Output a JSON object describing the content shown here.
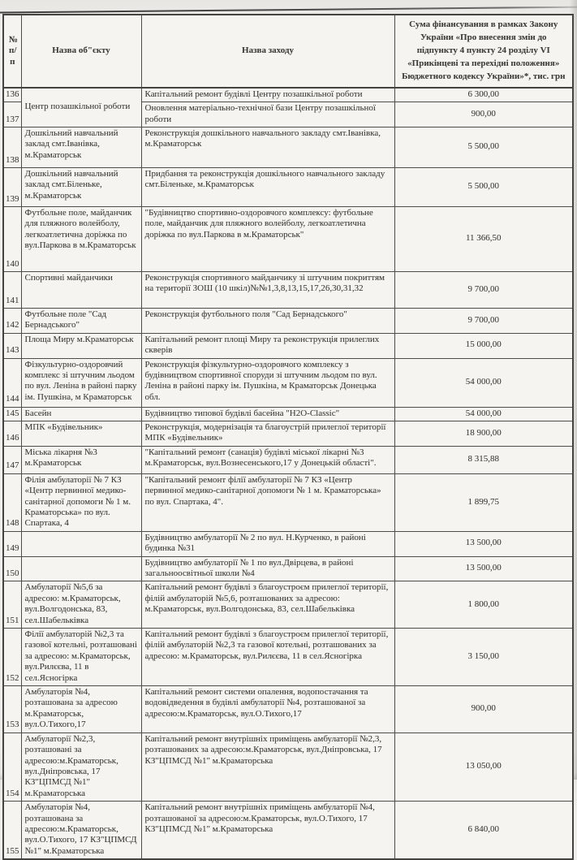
{
  "document": {
    "kind": "scanned budget funding table",
    "language": "uk"
  },
  "table": {
    "headers": {
      "num_line1": "№",
      "num_line2": "п/п",
      "object": "Назва  об\"єкту",
      "measure": "Назва заходу",
      "amount": "Сума фінансування в рамках Закону України «Про внесення змін до підпункту 4 пункту 24 розділу VI «Прикінцеві та перехідні положення» Бюджетного кодексу України»*, тис. грн"
    },
    "rows": [
      {
        "num": "136",
        "object": "Центр позашкільної роботи",
        "object_rowspan": 2,
        "measure": "Капітальний ремонт будівлі Центру позашкільної роботи",
        "amount": "6 300,00"
      },
      {
        "num": "137",
        "object": null,
        "measure": "Оновлення матеріально-технічної бази Центру позашкільної роботи",
        "amount": "900,00"
      },
      {
        "num": "138",
        "object": "Дошкільний навчальний заклад смт.Іванівка, м.Краматорськ",
        "measure": "Реконструкція дошкільного навчального закладу смт.Іванівка, м.Краматорськ",
        "amount": "5 500,00"
      },
      {
        "num": "139",
        "object": "Дошкільний навчальний заклад смт.Біленьке, м.Краматорськ",
        "measure": "Придбання та реконструкція дошкільного навчального закладу смт.Біленьке, м.Краматорськ",
        "amount": "5 500,00"
      },
      {
        "num": "140",
        "object": "Футбольне поле, майданчик для пляжного волейболу, легкоатлетична доріжка по вул.Паркова в м.Краматорськ",
        "measure": "\"Будівництво спортивно-оздоровчого комплексу: футбольне поле, майданчик для пляжного волейболу, легкоатлетична доріжка по вул.Паркова в м.Краматорськ\"",
        "amount": "11 366,50"
      },
      {
        "num": "141",
        "object": "Спортивні майданчики",
        "measure": "Реконструкція спортивного майданчику зі штучним покриттям на території ЗОШ (10 шкіл)№№1,3,8,13,15,17,26,30,31,32",
        "amount": "9 700,00"
      },
      {
        "num": "142",
        "object": "Футбольне поле \"Сад Бернадського\"",
        "measure": "Реконструкція футбольного поля \"Сад Бернадського\"",
        "amount": "9 700,00"
      },
      {
        "num": "143",
        "object": "Площа Миру м.Краматорськ",
        "measure": "Капітальний ремонт площі Миру та реконструкція прилеглих скверів",
        "amount": "15 000,00"
      },
      {
        "num": "144",
        "object": "Фізкультурно-оздоровчий комплекс зі штучним льодом по вул. Леніна в районі парку ім. Пушкіна, м Краматорськ",
        "measure": "Реконструкція фізкультурно-оздоровчого комплексу з будівництвом спортивної споруди зі штучним льодом по вул. Леніна в районі парку ім. Пушкіна, м Краматорськ Донецька обл.",
        "amount": "54 000,00"
      },
      {
        "num": "145",
        "object": "Басейн",
        "measure": "Будівництво типової будівлі басейна \"H2O-Classic\"",
        "amount": "54 000,00"
      },
      {
        "num": "146",
        "object": "МПК «Будівельник»",
        "measure": "Реконструкція, модернізація та благоустрій прилеглої території МПК «Будівельник»",
        "amount": "18 900,00"
      },
      {
        "num": "147",
        "object": "Міська лікарня №3 м.Краматорськ",
        "measure": "\"Капітальний ремонт (санація) будівлі  міської лікарні №3 м.Краматорськ, вул.Вознесенського,17 у Донецькій області\".",
        "amount": "8 315,88"
      },
      {
        "num": "148",
        "object": "Філія амбулаторії № 7 КЗ «Центр первинної медико-санітарної допомоги № 1 м. Краматорська» по вул. Спартака, 4",
        "measure": "\"Капітальний ремонт філії амбулаторії № 7 КЗ «Центр первинної медико-санітарної допомоги № 1 м. Краматорська» по вул. Спартака, 4\".",
        "amount": "1 899,75"
      },
      {
        "num": "149",
        "object": "",
        "measure": "Будівництво амбулаторії № 2 по вул. Н.Курченко, в районі будинка №31",
        "amount": "13 500,00"
      },
      {
        "num": "150",
        "object": "",
        "measure": "Будівництво амбулаторії № 1 по вул.Двірцева, в районі загальноосвітньої школи №4",
        "amount": "13 500,00"
      },
      {
        "num": "151",
        "object": "Амбулаторії №5,6 за адресою: м.Краматорськ, вул.Волгодонська, 83, сел.Шабельківка",
        "measure": "Капітальний ремонт будівлі з благоустроєм прилеглої території, філій амбулаторій №5,6, розташованих за адресою: м.Краматорськ, вул.Волгодонська, 83, сел.Шабельківка",
        "amount": "1 800,00"
      },
      {
        "num": "152",
        "object": "Філії амбулаторій №2,3 та газової котельні, розташовані за адресою: м.Краматорськ, вул.Рилєєва, 11 в сел.Ясногірка",
        "measure": "Капітальний ремонт будівлі з благоустроєм прилеглої території, філій амбулаторій №2,3 та газової котельні, розташованих за адресою: м.Краматорськ, вул.Рилєєва, 11 в сел.Ясногірка",
        "amount": "3 150,00"
      },
      {
        "num": "153",
        "object": "Амбулаторія №4, розташована за адресою м.Краматорськ, вул.О.Тихого,17",
        "measure": "Капітальний ремонт системи опалення, водопостачання та водовідведення в будівлі амбулаторії №4, розташованої за адресою:м.Краматорськ, вул.О.Тихого,17",
        "amount": "900,00"
      },
      {
        "num": "154",
        "object": "Амбулаторії №2,3, розташовані за адресою:м.Краматорськ, вул.Дніпровська, 17 КЗ\"ЦПМСД №1\" м.Краматорська",
        "measure": "Капітальний ремонт внутрішніх приміщень амбулаторії №2,3, розташованих за адресою:м.Краматорськ, вул.Дніпровська, 17 КЗ\"ЦПМСД №1\" м.Краматорська",
        "amount": "13 050,00"
      },
      {
        "num": "155",
        "object": "Амбулаторія №4, розташована за адресою:м.Краматорськ, вул.О.Тихого, 17 КЗ\"ЦПМСД №1\" м.Краматорська",
        "measure": "Капітальний ремонт внутрішніх приміщень амбулаторії №4, розташованої за адресою:м.Краматорськ, вул.О.Тихого, 17 КЗ\"ЦПМСД №1\" м.Краматорська",
        "amount": "6 840,00"
      }
    ]
  },
  "colors": {
    "paper": "#f2f1ee",
    "cell_background": "#f5f4f1",
    "ink": "#403f3b",
    "border": "#4e4d4a"
  }
}
